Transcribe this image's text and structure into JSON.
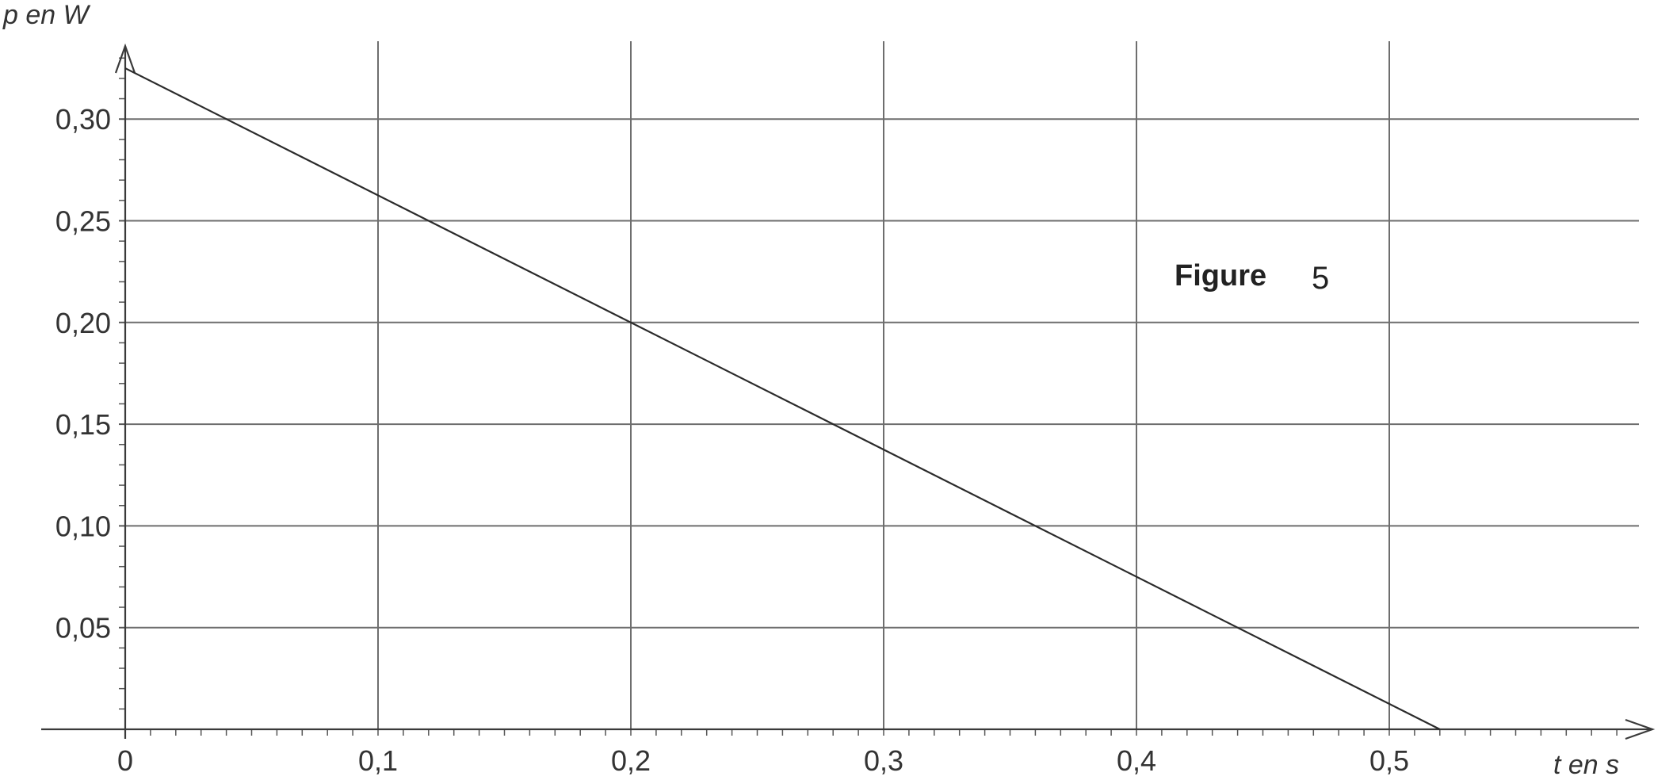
{
  "chart_data": {
    "type": "line",
    "title": "",
    "annotation": {
      "word": "Figure",
      "number": "5"
    },
    "xlabel": "t en s",
    "ylabel": "p en W",
    "x_ticks": [
      0,
      0.1,
      0.2,
      0.3,
      0.4,
      0.5
    ],
    "x_tick_labels": [
      "0",
      "0,1",
      "0,2",
      "0,3",
      "0,4",
      "0,5"
    ],
    "y_ticks": [
      0.05,
      0.1,
      0.15,
      0.2,
      0.25,
      0.3
    ],
    "y_tick_labels": [
      "0,05",
      "0,10",
      "0,15",
      "0,20",
      "0,25",
      "0,30"
    ],
    "xlim": [
      0,
      0.6
    ],
    "ylim": [
      0,
      0.33
    ],
    "grid": true,
    "series": [
      {
        "x": [
          0,
          0.52
        ],
        "y": [
          0.325,
          0
        ]
      }
    ]
  }
}
